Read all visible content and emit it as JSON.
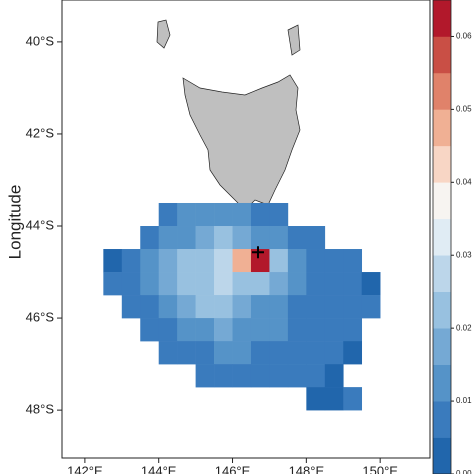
{
  "chart_data": {
    "type": "heatmap-map",
    "y_label": "Longitude",
    "xlim": [
      141.38,
      151.35
    ],
    "ylim": [
      -49.04,
      -39.09
    ],
    "xticks": [
      {
        "value": 142,
        "label": "142°E"
      },
      {
        "value": 144,
        "label": "144°E"
      },
      {
        "value": 146,
        "label": "146°E"
      },
      {
        "value": 148,
        "label": "148°E"
      },
      {
        "value": 150,
        "label": "150°E"
      }
    ],
    "yticks": [
      {
        "value": -40,
        "label": "40°S"
      },
      {
        "value": -42,
        "label": "42°S"
      },
      {
        "value": -44,
        "label": "44°S"
      },
      {
        "value": -46,
        "label": "46°S"
      },
      {
        "value": -48,
        "label": "48°S"
      }
    ],
    "lon_centers": [
      142.75,
      143.25,
      143.75,
      144.25,
      144.75,
      145.25,
      145.75,
      146.25,
      146.75,
      147.25,
      147.75,
      148.25,
      148.75,
      149.25,
      149.75,
      150.25
    ],
    "lat_centers": [
      -43.75,
      -44.25,
      -44.75,
      -45.25,
      -45.75,
      -46.25,
      -46.75,
      -47.25,
      -47.75
    ],
    "grid": [
      [
        null,
        null,
        null,
        0.008,
        0.01,
        0.012,
        0.01,
        0.01,
        0.008,
        0.006,
        null,
        null,
        null,
        null,
        null,
        null
      ],
      [
        null,
        null,
        0.006,
        0.01,
        0.014,
        0.018,
        0.02,
        0.016,
        0.014,
        0.012,
        0.008,
        0.006,
        null,
        null,
        null,
        null
      ],
      [
        0.004,
        0.006,
        0.01,
        0.016,
        0.022,
        0.024,
        0.026,
        0.045,
        0.062,
        0.022,
        0.012,
        0.008,
        0.006,
        0.005,
        null,
        null
      ],
      [
        0.005,
        0.007,
        0.01,
        0.016,
        0.02,
        0.022,
        0.025,
        0.024,
        0.02,
        0.016,
        0.01,
        0.008,
        0.006,
        0.005,
        0.004,
        null
      ],
      [
        null,
        0.005,
        0.008,
        0.012,
        0.016,
        0.02,
        0.022,
        0.018,
        0.014,
        0.012,
        0.009,
        0.007,
        0.006,
        0.005,
        0.005,
        null
      ],
      [
        null,
        null,
        0.005,
        0.008,
        0.01,
        0.014,
        0.016,
        0.014,
        0.012,
        0.01,
        0.008,
        0.006,
        0.005,
        0.005,
        null,
        null
      ],
      [
        null,
        null,
        null,
        0.005,
        0.007,
        0.008,
        0.01,
        0.01,
        0.009,
        0.008,
        0.007,
        0.006,
        0.005,
        0.004,
        null,
        null
      ],
      [
        null,
        null,
        null,
        null,
        null,
        0.005,
        0.006,
        0.006,
        0.006,
        0.005,
        0.005,
        0.005,
        0.004,
        null,
        null,
        null
      ],
      [
        null,
        null,
        null,
        null,
        null,
        null,
        null,
        null,
        null,
        null,
        null,
        0.004,
        0.004,
        0.005,
        null,
        null
      ]
    ],
    "marker": {
      "lon": 146.69,
      "lat": -44.57
    },
    "colorbar_lim": [
      0,
      0.065
    ],
    "colorbar_ticks": [
      {
        "value": 0,
        "label": "0.00"
      },
      {
        "value": 0.01,
        "label": "0.01"
      },
      {
        "value": 0.02,
        "label": "0.02"
      },
      {
        "value": 0.03,
        "label": "0.03"
      },
      {
        "value": 0.04,
        "label": "0.04"
      },
      {
        "value": 0.05,
        "label": "0.05"
      },
      {
        "value": 0.06,
        "label": "0.06"
      }
    ],
    "palette": [
      "#2166ac",
      "#3a7bbd",
      "#5593c8",
      "#75a9d4",
      "#98c1e0",
      "#bcd6ea",
      "#e0ecf4",
      "#f7f4f1",
      "#f8d6c5",
      "#f0b094",
      "#e0826a",
      "#c94f45",
      "#b2182b"
    ]
  }
}
